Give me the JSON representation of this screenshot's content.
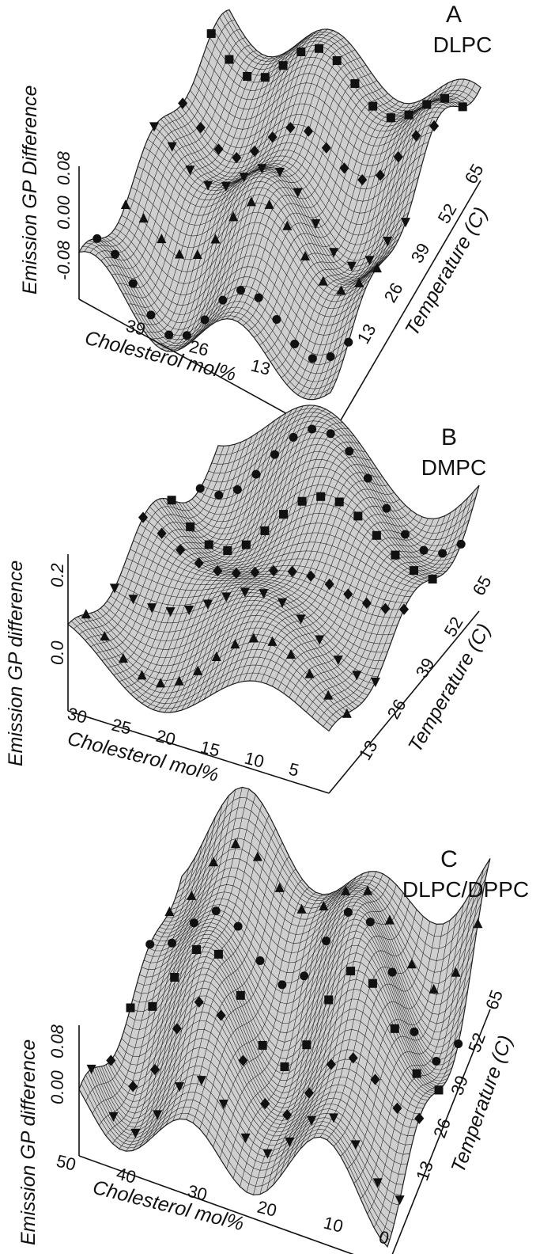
{
  "chart_data": [
    {
      "type": "surface",
      "panel_letter": "A",
      "lipid": "DLPC",
      "zlabel": "Emission GP Difference",
      "xlabel": "Cholesterol mol%",
      "ylabel": "Temperature (C)",
      "x_ticks": [
        "39",
        "26",
        "13"
      ],
      "y_ticks": [
        "13",
        "26",
        "39",
        "52",
        "65"
      ],
      "z_ticks": [
        "-0.08",
        "0.00",
        "0.08"
      ],
      "xlim": [
        0,
        50
      ],
      "ylim": [
        0,
        70
      ],
      "zlim": [
        -0.1,
        0.1
      ],
      "grid": false,
      "marker_types": [
        "square",
        "circle",
        "triangle",
        "triangle-down",
        "diamond"
      ]
    },
    {
      "type": "surface",
      "panel_letter": "B",
      "lipid": "DMPC",
      "zlabel": "Emission GP difference",
      "xlabel": "Cholesterol mol%",
      "ylabel": "Temperature (C)",
      "x_ticks": [
        "30",
        "25",
        "20",
        "15",
        "10",
        "5"
      ],
      "y_ticks": [
        "13",
        "26",
        "39",
        "52",
        "65"
      ],
      "z_ticks": [
        "0.0",
        "0.2"
      ],
      "xlim": [
        0,
        32
      ],
      "ylim": [
        0,
        70
      ],
      "zlim": [
        -0.1,
        0.3
      ],
      "grid": false,
      "marker_types": [
        "square",
        "circle",
        "triangle",
        "triangle-down",
        "diamond"
      ]
    },
    {
      "type": "surface",
      "panel_letter": "C",
      "lipid": "DLPC/DPPC",
      "zlabel": "Emission GP difference",
      "xlabel": "Cholesterol mol%",
      "ylabel": "Temperature (C)",
      "x_ticks": [
        "50",
        "40",
        "30",
        "20",
        "10",
        "0"
      ],
      "y_ticks": [
        "13",
        "26",
        "39",
        "52",
        "65"
      ],
      "z_ticks": [
        "0.00",
        "0.08"
      ],
      "xlim": [
        0,
        50
      ],
      "ylim": [
        0,
        70
      ],
      "zlim": [
        -0.12,
        0.16
      ],
      "grid": false,
      "marker_types": [
        "square",
        "circle",
        "triangle",
        "triangle-down",
        "diamond"
      ]
    }
  ]
}
